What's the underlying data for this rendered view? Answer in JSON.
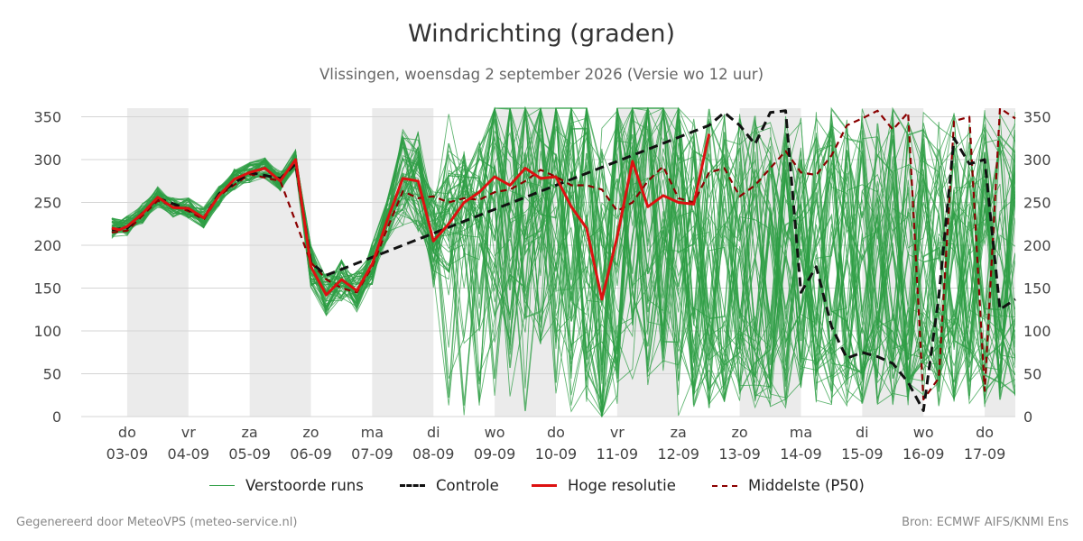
{
  "title": "Windrichting (graden)",
  "subtitle": "Vlissingen, woensdag  2 september 2026 (Versie wo 12 uur)",
  "footer_left": "Gegenereerd door MeteoVPS (meteo-service.nl)",
  "footer_right": "Bron: ECMWF AIFS/KNMI Ens",
  "legend": [
    {
      "label": "Verstoorde runs",
      "color": "#2e9e44",
      "style": "thin"
    },
    {
      "label": "Controle",
      "color": "#111111",
      "style": "dashed"
    },
    {
      "label": "Hoge resolutie",
      "color": "#dd1111",
      "style": "solid"
    },
    {
      "label": "Middelste (P50)",
      "color": "#8b0000",
      "style": "dashed"
    }
  ],
  "chart_data": {
    "type": "line",
    "x_unit": "days since 03-09 00:00",
    "xlim": [
      -0.75,
      14.5
    ],
    "ylim": [
      0,
      360
    ],
    "yticks": [
      0,
      50,
      100,
      150,
      200,
      250,
      300,
      350
    ],
    "dual_y_axis": true,
    "x_ticks": [
      {
        "day": "do",
        "date": "03-09"
      },
      {
        "day": "vr",
        "date": "04-09"
      },
      {
        "day": "za",
        "date": "05-09"
      },
      {
        "day": "zo",
        "date": "06-09"
      },
      {
        "day": "ma",
        "date": "07-09"
      },
      {
        "day": "di",
        "date": "08-09"
      },
      {
        "day": "wo",
        "date": "09-09"
      },
      {
        "day": "do",
        "date": "10-09"
      },
      {
        "day": "vr",
        "date": "11-09"
      },
      {
        "day": "za",
        "date": "12-09"
      },
      {
        "day": "zo",
        "date": "13-09"
      },
      {
        "day": "ma",
        "date": "14-09"
      },
      {
        "day": "di",
        "date": "15-09"
      },
      {
        "day": "wo",
        "date": "16-09"
      },
      {
        "day": "do",
        "date": "17-09"
      }
    ],
    "weekend_shading": [
      [
        0,
        1
      ],
      [
        2,
        3
      ],
      [
        4,
        5
      ],
      [
        6,
        7
      ],
      [
        8,
        9
      ],
      [
        10,
        11
      ],
      [
        12,
        13
      ],
      [
        14,
        14.5
      ]
    ],
    "grid": true,
    "legend_position": "bottom",
    "series": [
      {
        "name": "Hoge resolutie",
        "color": "#dd1111",
        "x": [
          -0.25,
          -0.125,
          0,
          0.25,
          0.5,
          0.75,
          1,
          1.25,
          1.5,
          1.75,
          2,
          2.25,
          2.5,
          2.75,
          3,
          3.25,
          3.5,
          3.75,
          4,
          4.25,
          4.5,
          4.75,
          5,
          5.25,
          5.5,
          5.75,
          6,
          6.25,
          6.5,
          6.75,
          7,
          7.25,
          7.5,
          7.75,
          8,
          8.25,
          8.5,
          8.75,
          9,
          9.25,
          9.5
        ],
        "values": [
          220,
          218,
          222,
          237,
          256,
          244,
          243,
          232,
          258,
          277,
          285,
          290,
          275,
          300,
          175,
          142,
          160,
          147,
          178,
          230,
          278,
          275,
          205,
          225,
          250,
          262,
          280,
          270,
          290,
          278,
          280,
          245,
          220,
          137,
          210,
          298,
          245,
          258,
          250,
          248,
          330
        ]
      },
      {
        "name": "Controle",
        "color": "#111111",
        "x": [
          -0.25,
          0,
          0.5,
          1,
          1.25,
          1.5,
          2,
          2.5,
          2.75,
          3,
          3.25,
          9.5,
          9.75,
          10,
          10.25,
          10.5,
          10.75,
          11,
          11.25,
          11.5,
          11.75,
          12,
          12.25,
          12.5,
          12.75,
          13,
          13.25,
          13.5,
          13.75,
          14,
          14.25,
          14.5
        ],
        "values": [
          218,
          220,
          255,
          242,
          232,
          260,
          285,
          278,
          295,
          180,
          165,
          340,
          355,
          340,
          318,
          355,
          357,
          145,
          175,
          105,
          68,
          75,
          70,
          62,
          40,
          7,
          140,
          325,
          295,
          300,
          125,
          137
        ]
      },
      {
        "name": "Middelste (P50)",
        "color": "#8b0000",
        "x": [
          -0.25,
          0,
          0.5,
          1,
          1.25,
          1.5,
          2,
          2.5,
          3,
          3.25,
          3.5,
          3.75,
          4,
          4.25,
          4.5,
          4.75,
          5,
          5.25,
          5.5,
          5.75,
          6,
          6.25,
          6.5,
          6.75,
          7,
          7.25,
          7.5,
          7.75,
          8,
          8.25,
          8.5,
          8.75,
          9,
          9.25,
          9.5,
          9.75,
          10,
          10.25,
          10.5,
          10.75,
          11,
          11.25,
          11.5,
          11.75,
          12,
          12.25,
          12.5,
          12.75,
          13,
          13.25,
          13.5,
          13.75,
          14,
          14.25,
          14.5
        ],
        "values": [
          215,
          217,
          252,
          240,
          230,
          258,
          283,
          275,
          180,
          160,
          150,
          145,
          175,
          220,
          263,
          255,
          257,
          250,
          255,
          253,
          262,
          265,
          275,
          288,
          280,
          270,
          270,
          265,
          240,
          250,
          275,
          292,
          255,
          250,
          285,
          290,
          257,
          270,
          290,
          310,
          285,
          282,
          305,
          340,
          348,
          357,
          335,
          355,
          20,
          45,
          345,
          350,
          30,
          360,
          348
        ]
      }
    ],
    "ensemble_members": {
      "name": "Verstoorde runs",
      "color": "#2e9e44",
      "count": 50
    }
  }
}
